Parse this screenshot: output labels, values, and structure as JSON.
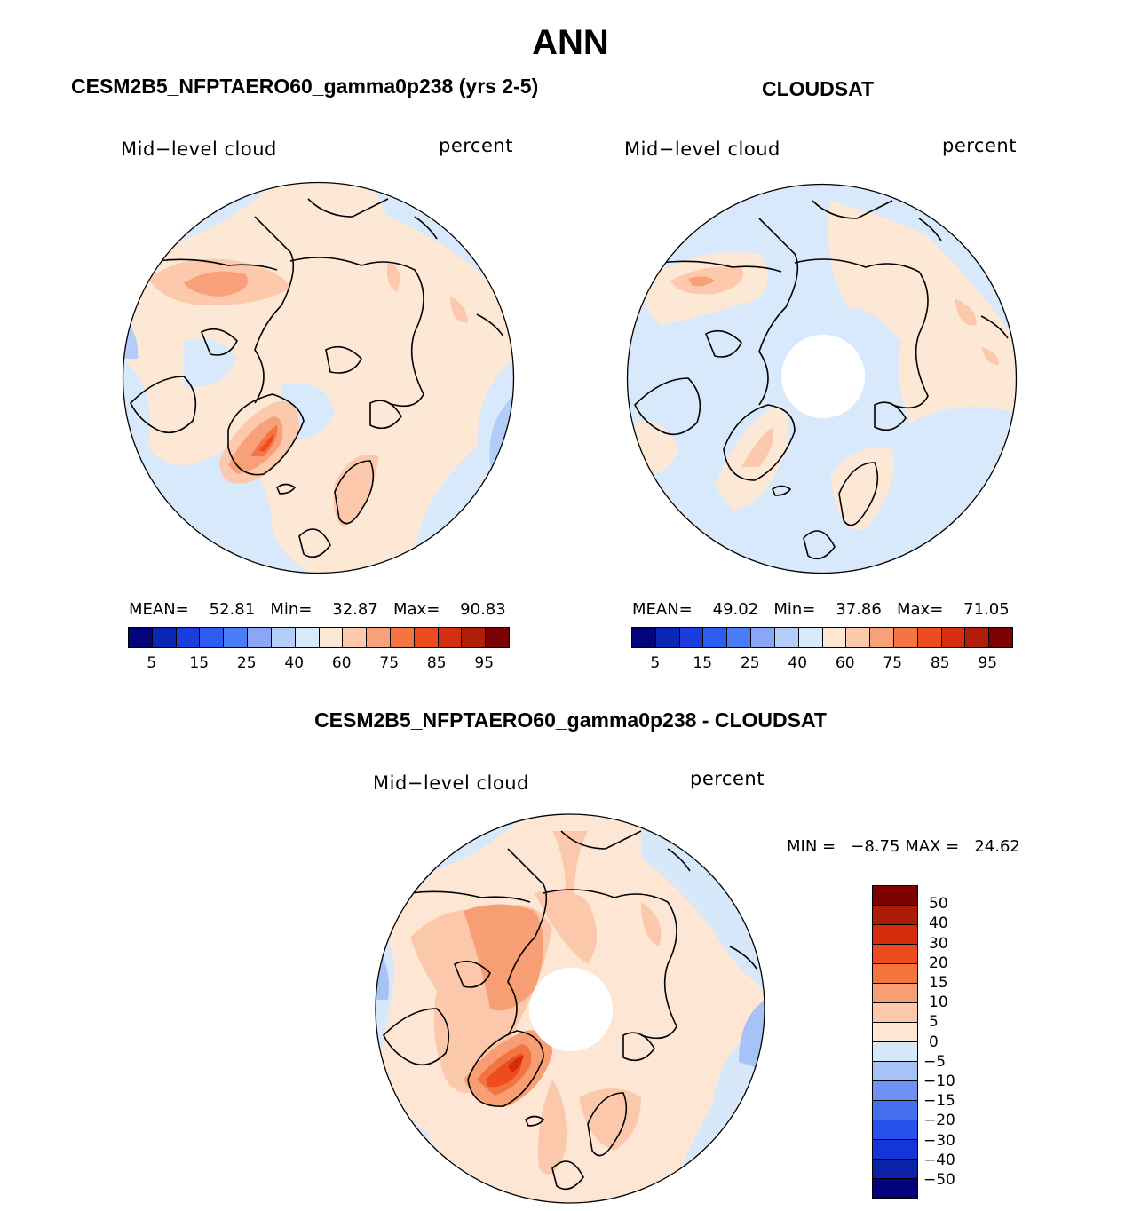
{
  "title": "ANN",
  "palette": {
    "abs": [
      "#03037a",
      "#0a26b4",
      "#1a3cdc",
      "#2e5cf0",
      "#4a7cf5",
      "#88a8f5",
      "#b4cdf8",
      "#d8e9fb",
      "#fde8d6",
      "#fcc9ac",
      "#f8a07a",
      "#f47442",
      "#ee4c1e",
      "#d62e12",
      "#b01e0a",
      "#7c0204"
    ],
    "diff": [
      "#02027a",
      "#0a22a8",
      "#1436d8",
      "#2850ec",
      "#4470f0",
      "#6e92f2",
      "#a6c2f6",
      "#d8e8fb",
      "#fde6d4",
      "#fcc8ac",
      "#f89e74",
      "#f47440",
      "#ee4c1c",
      "#d62c0e",
      "#ac1c06",
      "#7c0204"
    ]
  },
  "panels": {
    "model": {
      "title": "CESM2B5_NFPTAERO60_gamma0p238 (yrs 2-5)",
      "variable": "Mid−level  cloud",
      "units": "percent",
      "stats": {
        "mean_label": "MEAN=",
        "mean": "52.81",
        "min_label": "Min=",
        "min": "32.87",
        "max_label": "Max=",
        "max": "90.83"
      }
    },
    "obs": {
      "title": "CLOUDSAT",
      "variable": "Mid−level  cloud",
      "units": "percent",
      "stats": {
        "mean_label": "MEAN=",
        "mean": "49.02",
        "min_label": "Min=",
        "min": "37.86",
        "max_label": "Max=",
        "max": "71.05"
      }
    },
    "diff": {
      "title": "CESM2B5_NFPTAERO60_gamma0p238 - CLOUDSAT",
      "variable": "Mid−level  cloud",
      "units": "percent",
      "minmax": {
        "min_label": "MIN  =",
        "min": "−8.75",
        "max_label": "MAX  =",
        "max": "24.62"
      }
    }
  },
  "colorbar_abs_ticks": [
    "5",
    "15",
    "25",
    "40",
    "60",
    "75",
    "85",
    "95"
  ],
  "colorbar_diff_ticks": [
    "50",
    "40",
    "30",
    "20",
    "15",
    "10",
    "5",
    "0",
    "−5",
    "−10",
    "−15",
    "−20",
    "−30",
    "−40",
    "−50"
  ]
}
